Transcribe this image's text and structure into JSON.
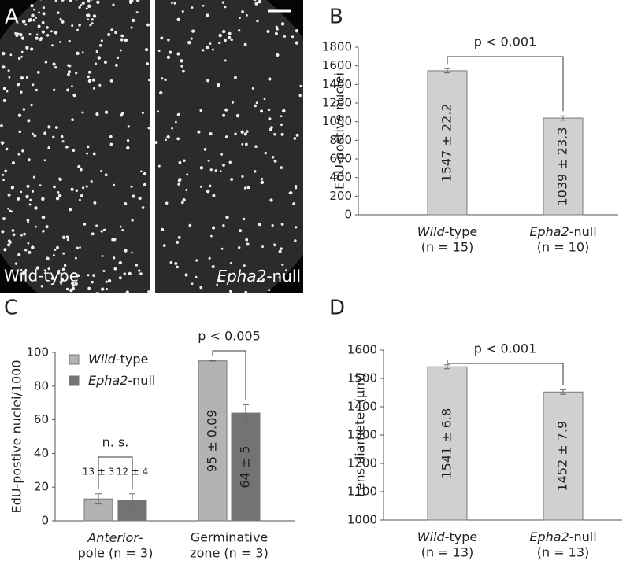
{
  "panel_letters": [
    "A",
    "B",
    "C",
    "D"
  ],
  "image_panel": {
    "left_label": "Wild-type",
    "right_label": "Epha2-null"
  },
  "chart_data": [
    {
      "type": "bar",
      "ylabel": "EdU-postive nuclei",
      "categories": [
        [
          "Wild-type",
          "(n = 15)"
        ],
        [
          "Epha2-null",
          "(n = 10)"
        ]
      ],
      "values": [
        1547,
        1039
      ],
      "errors": [
        22.2,
        23.3
      ],
      "value_labels": [
        "1547 ± 22.2",
        "1039 ± 23.3"
      ],
      "color": "#d0d0d0",
      "ylim": [
        0,
        1800
      ],
      "yticks": [
        0,
        200,
        400,
        600,
        800,
        1000,
        1200,
        1400,
        1600,
        1800
      ],
      "annotations": [
        "p < 0.001"
      ]
    },
    {
      "type": "bar",
      "ylabel": "EdU-postive nuclei/1000",
      "categories": [
        [
          "Anterior-",
          "pole (n = 3)"
        ],
        [
          "Germinative",
          "zone (n = 3)"
        ]
      ],
      "series": [
        {
          "name": "Wild-type",
          "color": "#b3b3b3",
          "values": [
            13,
            95
          ],
          "errors": [
            3,
            0.09
          ],
          "value_labels": [
            "13 ± 3",
            "95 ± 0.09"
          ]
        },
        {
          "name": "Epha2-null",
          "color": "#737373",
          "values": [
            12,
            64
          ],
          "errors": [
            4,
            5
          ],
          "value_labels": [
            "12 ± 4",
            "64 ± 5"
          ]
        }
      ],
      "ylim": [
        0,
        100
      ],
      "yticks": [
        0,
        20,
        40,
        60,
        80,
        100
      ],
      "annotations": [
        "n. s.",
        "p < 0.005"
      ]
    },
    {
      "type": "bar",
      "ylabel": "Lens diameter (μm)",
      "categories": [
        [
          "Wild-type",
          "(n = 13)"
        ],
        [
          "Epha2-null",
          "(n = 13)"
        ]
      ],
      "values": [
        1541,
        1452
      ],
      "errors": [
        6.8,
        7.9
      ],
      "value_labels": [
        "1541 ± 6.8",
        "1452 ± 7.9"
      ],
      "color": "#d0d0d0",
      "ylim": [
        1000,
        1600
      ],
      "yticks": [
        1000,
        1100,
        1200,
        1300,
        1400,
        1500,
        1600
      ],
      "annotations": [
        "p < 0.001"
      ]
    }
  ]
}
